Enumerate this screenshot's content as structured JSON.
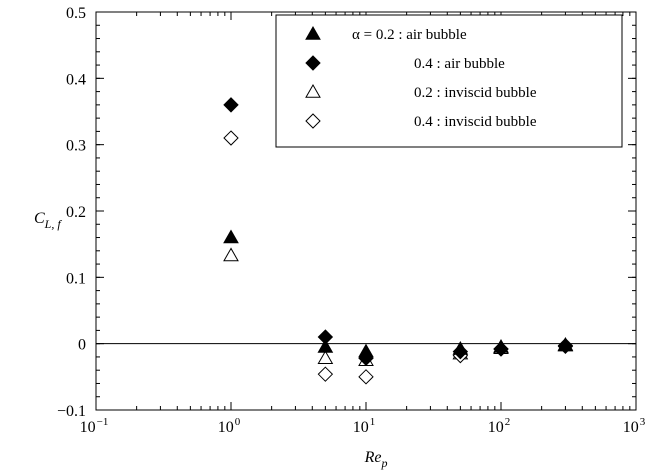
{
  "chart_data": {
    "type": "scatter",
    "xscale": "log",
    "xlim": [
      0.1,
      1000
    ],
    "ylim": [
      -0.1,
      0.5
    ],
    "xlabel": "Re",
    "xlabel_sub": "p",
    "ylabel": "C",
    "ylabel_sub": "L, f",
    "x_ticks": [
      {
        "value": 0.1,
        "base": "10",
        "exp": "−1"
      },
      {
        "value": 1,
        "base": "10",
        "exp": "0"
      },
      {
        "value": 10,
        "base": "10",
        "exp": "1"
      },
      {
        "value": 100,
        "base": "10",
        "exp": "2"
      },
      {
        "value": 1000,
        "base": "10",
        "exp": "3"
      }
    ],
    "y_ticks": [
      {
        "value": -0.1,
        "label": "−0.1"
      },
      {
        "value": 0,
        "label": "0"
      },
      {
        "value": 0.1,
        "label": "0.1"
      },
      {
        "value": 0.2,
        "label": "0.2"
      },
      {
        "value": 0.3,
        "label": "0.3"
      },
      {
        "value": 0.4,
        "label": "0.4"
      },
      {
        "value": 0.5,
        "label": "0.5"
      }
    ],
    "reference_line_y": 0,
    "grid": false,
    "legend_position": "top-right",
    "series": [
      {
        "name": "α = 0.2 : air bubble",
        "marker": "triangle",
        "filled": true,
        "points": [
          [
            1,
            0.16
          ],
          [
            5,
            -0.005
          ],
          [
            10,
            -0.012
          ],
          [
            50,
            -0.008
          ],
          [
            100,
            -0.005
          ],
          [
            300,
            -0.002
          ]
        ]
      },
      {
        "name": "0.4 : air bubble",
        "marker": "diamond",
        "filled": true,
        "points": [
          [
            1,
            0.36
          ],
          [
            5,
            0.01
          ],
          [
            10,
            -0.022
          ],
          [
            50,
            -0.012
          ],
          [
            100,
            -0.008
          ],
          [
            300,
            -0.003
          ]
        ]
      },
      {
        "name": "0.2 : inviscid bubble",
        "marker": "triangle",
        "filled": false,
        "points": [
          [
            1,
            0.133
          ],
          [
            5,
            -0.022
          ],
          [
            10,
            -0.025
          ],
          [
            50,
            -0.015
          ],
          [
            100,
            -0.007
          ],
          [
            300,
            -0.003
          ]
        ]
      },
      {
        "name": "0.4 : inviscid bubble",
        "marker": "diamond",
        "filled": false,
        "points": [
          [
            1,
            0.31
          ],
          [
            5,
            -0.046
          ],
          [
            10,
            -0.05
          ],
          [
            50,
            -0.018
          ],
          [
            100,
            -0.008
          ],
          [
            300,
            -0.004
          ]
        ]
      }
    ],
    "colors": {
      "axis": "#000000",
      "marker": "#000000",
      "background": "#ffffff"
    }
  }
}
